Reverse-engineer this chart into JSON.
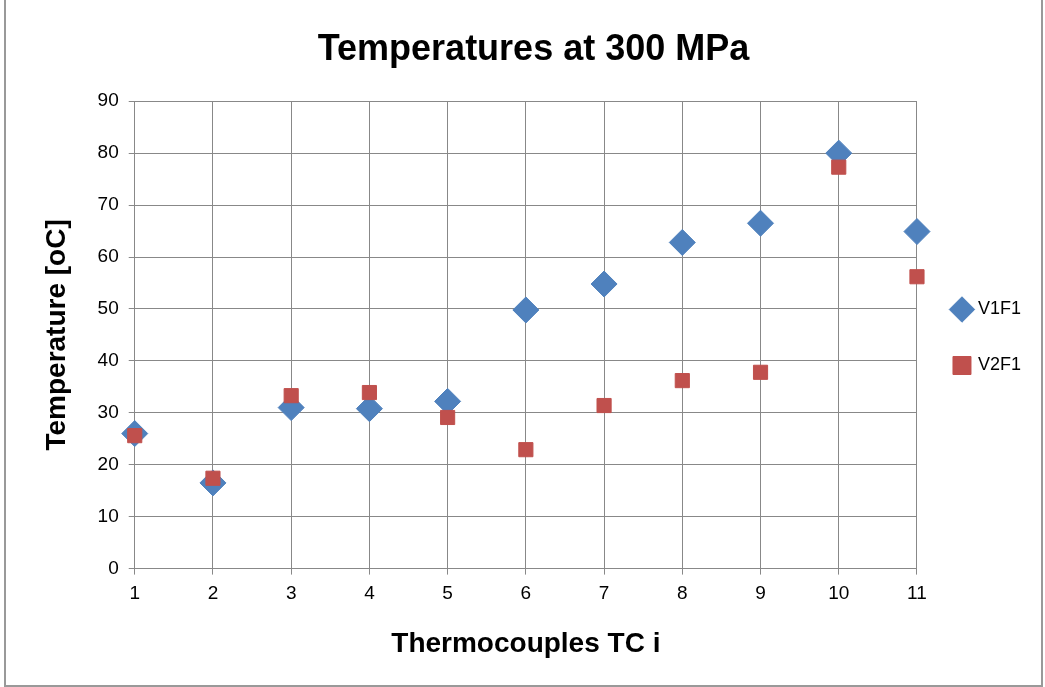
{
  "chart_data": {
    "type": "scatter",
    "title": "Temperatures at 300 MPa",
    "xlabel": "Thermocouples TC i",
    "ylabel": "Temperature [oC]",
    "x": [
      1,
      2,
      3,
      4,
      5,
      6,
      7,
      8,
      9,
      10,
      11
    ],
    "series": [
      {
        "name": "V1F1",
        "color": "#4f81bd",
        "marker": "diamond",
        "values": [
          26,
          16.5,
          31,
          30.8,
          32.2,
          49.8,
          54.8,
          62.8,
          66.5,
          80,
          64.9
        ]
      },
      {
        "name": "V2F1",
        "color": "#c0504d",
        "marker": "square",
        "values": [
          25.6,
          17.4,
          33.3,
          33.9,
          29.1,
          22.9,
          31.4,
          36.2,
          37.8,
          77.3,
          56.2
        ]
      }
    ],
    "xlim": [
      1,
      11
    ],
    "xticks": [
      1,
      2,
      3,
      4,
      5,
      6,
      7,
      8,
      9,
      10,
      11
    ],
    "ylim": [
      0,
      90
    ],
    "yticks": [
      0,
      10,
      20,
      30,
      40,
      50,
      60,
      70,
      80,
      90
    ],
    "grid": true,
    "legend": "right"
  }
}
